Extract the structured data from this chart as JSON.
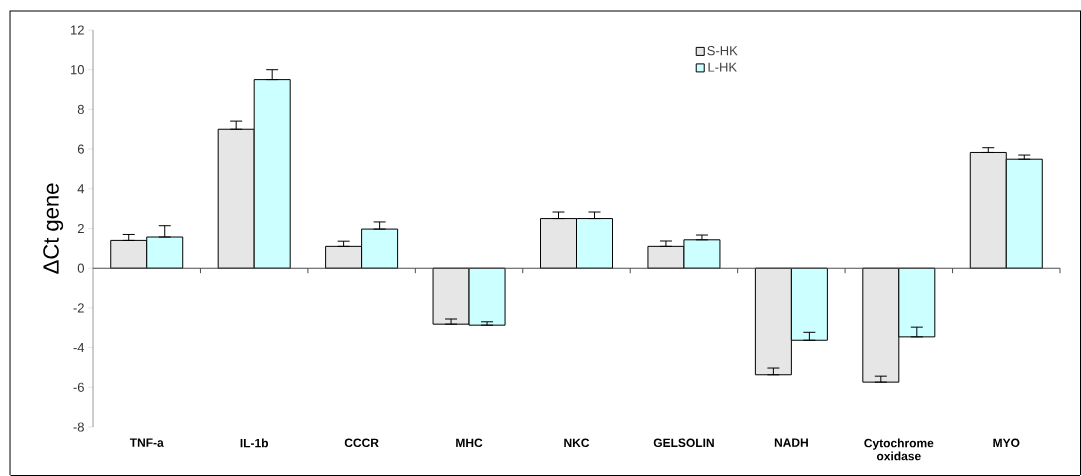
{
  "chart_data": {
    "type": "bar",
    "ylabel": "ΔCt gene",
    "categories": [
      "TNF-a",
      "IL-1b",
      "CCCR",
      "MHC",
      "NKC",
      "GELSOLIN",
      "NADH",
      "Cytochrome oxidase",
      "MYO"
    ],
    "series": [
      {
        "name": "S-HK",
        "color": "#e6e6e6",
        "values": [
          1.4,
          7.0,
          1.1,
          -2.82,
          2.5,
          1.1,
          -5.37,
          -5.74,
          5.83
        ],
        "errors": [
          [
            1.4,
            1.7
          ],
          [
            7.0,
            7.41
          ],
          [
            1.1,
            1.36
          ],
          [
            -2.82,
            -2.56
          ],
          [
            2.5,
            2.83
          ],
          [
            1.1,
            1.37
          ],
          [
            -5.37,
            -5.03
          ],
          [
            -5.74,
            -5.44
          ],
          [
            5.83,
            6.07
          ]
        ]
      },
      {
        "name": "L-HK",
        "color": "#ccffff",
        "values": [
          1.57,
          9.5,
          1.97,
          -2.87,
          2.5,
          1.43,
          -3.63,
          -3.46,
          5.49
        ],
        "errors": [
          [
            1.57,
            2.14
          ],
          [
            9.5,
            10.0
          ],
          [
            1.97,
            2.33
          ],
          [
            -2.87,
            -2.7
          ],
          [
            2.5,
            2.83
          ],
          [
            1.43,
            1.67
          ],
          [
            -3.63,
            -3.23
          ],
          [
            -3.46,
            -2.97
          ],
          [
            5.49,
            5.7
          ]
        ]
      }
    ],
    "ylim": [
      -8,
      12
    ],
    "yticks": [
      -8,
      -6,
      -4,
      -2,
      0,
      2,
      4,
      6,
      8,
      10,
      12
    ],
    "legend": "top",
    "grid": false
  }
}
